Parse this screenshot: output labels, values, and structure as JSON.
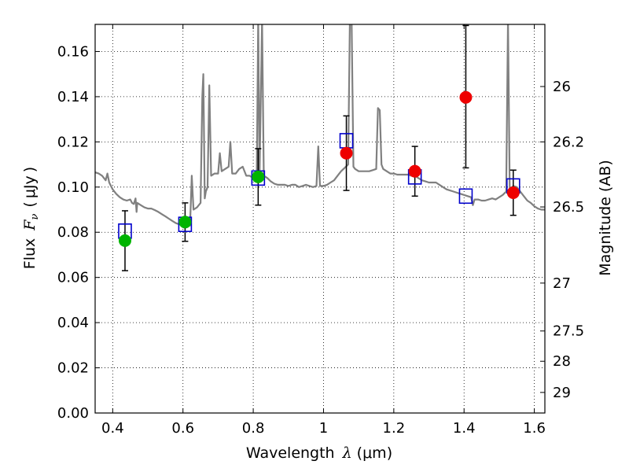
{
  "chart_data": {
    "type": "scatter",
    "xlabel": {
      "prefix": "Wavelength",
      "symbol": "λ",
      "unit_open": "(",
      "unit": "μm",
      "unit_close": ")"
    },
    "ylabel": {
      "prefix": "Flux",
      "symbol": "F",
      "subscript": "ν",
      "unit_open": "(",
      "unit": "μJy",
      "unit_close": ")"
    },
    "y2label": "Magnitude (AB)",
    "xlim": [
      0.35,
      1.63
    ],
    "ylim": [
      0.0,
      0.172
    ],
    "x_ticks": [
      0.4,
      0.6,
      0.8,
      1.0,
      1.2,
      1.4,
      1.6
    ],
    "x_tick_labels": [
      "0.4",
      "0.6",
      "0.8",
      "1",
      "1.2",
      "1.4",
      "1.6"
    ],
    "y_ticks": [
      0.0,
      0.02,
      0.04,
      0.06,
      0.08,
      0.1,
      0.12,
      0.14,
      0.16
    ],
    "y_tick_labels": [
      "0.00",
      "0.02",
      "0.04",
      "0.06",
      "0.08",
      "0.10",
      "0.12",
      "0.14",
      "0.16"
    ],
    "y2_ticks": [
      {
        "flux": 0.1445,
        "label": "26"
      },
      {
        "flux": 0.12,
        "label": "26.2"
      },
      {
        "flux": 0.0912,
        "label": "26.5"
      },
      {
        "flux": 0.0575,
        "label": "27"
      },
      {
        "flux": 0.0363,
        "label": "27.5"
      },
      {
        "flux": 0.0229,
        "label": "28"
      },
      {
        "flux": 0.0091,
        "label": "29"
      }
    ],
    "grid": true,
    "series": [
      {
        "marker": "square-open",
        "color": "#0000cc",
        "points": [
          {
            "x": 0.435,
            "y": 0.0805
          },
          {
            "x": 0.606,
            "y": 0.0835
          },
          {
            "x": 0.814,
            "y": 0.104
          },
          {
            "x": 1.065,
            "y": 0.1205
          },
          {
            "x": 1.26,
            "y": 0.1045
          },
          {
            "x": 1.405,
            "y": 0.096
          },
          {
            "x": 1.54,
            "y": 0.1005
          }
        ]
      },
      {
        "marker": "circle-filled",
        "color": "#00b400",
        "points": [
          {
            "x": 0.435,
            "y": 0.0763,
            "yerr_low": 0.063,
            "yerr_high": 0.0895
          },
          {
            "x": 0.606,
            "y": 0.0845,
            "yerr_low": 0.076,
            "yerr_high": 0.093
          },
          {
            "x": 0.814,
            "y": 0.1045,
            "yerr_low": 0.092,
            "yerr_high": 0.117
          }
        ]
      },
      {
        "marker": "circle-filled",
        "color": "#ee0000",
        "points": [
          {
            "x": 1.065,
            "y": 0.115,
            "yerr_low": 0.0985,
            "yerr_high": 0.1315
          },
          {
            "x": 1.26,
            "y": 0.107,
            "yerr_low": 0.096,
            "yerr_high": 0.118
          },
          {
            "x": 1.405,
            "y": 0.1397,
            "yerr_low": 0.1085,
            "yerr_high": 0.1715
          },
          {
            "x": 1.54,
            "y": 0.0975,
            "yerr_low": 0.0875,
            "yerr_high": 0.1075
          }
        ]
      },
      {
        "type": "line",
        "color": "#808080",
        "points": [
          [
            0.35,
            0.1065
          ],
          [
            0.36,
            0.106
          ],
          [
            0.37,
            0.105
          ],
          [
            0.38,
            0.103
          ],
          [
            0.385,
            0.106
          ],
          [
            0.39,
            0.102
          ],
          [
            0.4,
            0.099
          ],
          [
            0.41,
            0.097
          ],
          [
            0.42,
            0.0955
          ],
          [
            0.43,
            0.0945
          ],
          [
            0.44,
            0.094
          ],
          [
            0.45,
            0.0945
          ],
          [
            0.455,
            0.093
          ],
          [
            0.46,
            0.0925
          ],
          [
            0.465,
            0.095
          ],
          [
            0.468,
            0.089
          ],
          [
            0.47,
            0.093
          ],
          [
            0.48,
            0.092
          ],
          [
            0.49,
            0.091
          ],
          [
            0.5,
            0.0905
          ],
          [
            0.51,
            0.0905
          ],
          [
            0.52,
            0.0898
          ],
          [
            0.53,
            0.089
          ],
          [
            0.54,
            0.088
          ],
          [
            0.55,
            0.087
          ],
          [
            0.56,
            0.086
          ],
          [
            0.57,
            0.085
          ],
          [
            0.58,
            0.084
          ],
          [
            0.59,
            0.0835
          ],
          [
            0.6,
            0.083
          ],
          [
            0.61,
            0.0828
          ],
          [
            0.62,
            0.083
          ],
          [
            0.625,
            0.105
          ],
          [
            0.63,
            0.09
          ],
          [
            0.64,
            0.091
          ],
          [
            0.65,
            0.093
          ],
          [
            0.655,
            0.14
          ],
          [
            0.658,
            0.15
          ],
          [
            0.662,
            0.095
          ],
          [
            0.665,
            0.098
          ],
          [
            0.67,
            0.1
          ],
          [
            0.675,
            0.145
          ],
          [
            0.68,
            0.105
          ],
          [
            0.69,
            0.106
          ],
          [
            0.7,
            0.106
          ],
          [
            0.705,
            0.115
          ],
          [
            0.71,
            0.107
          ],
          [
            0.72,
            0.108
          ],
          [
            0.73,
            0.109
          ],
          [
            0.735,
            0.12
          ],
          [
            0.74,
            0.106
          ],
          [
            0.75,
            0.106
          ],
          [
            0.76,
            0.108
          ],
          [
            0.77,
            0.109
          ],
          [
            0.78,
            0.105
          ],
          [
            0.79,
            0.105
          ],
          [
            0.8,
            0.104
          ],
          [
            0.81,
            0.106
          ],
          [
            0.814,
            0.174
          ],
          [
            0.818,
            0.105
          ],
          [
            0.825,
            0.174
          ],
          [
            0.83,
            0.105
          ],
          [
            0.84,
            0.104
          ],
          [
            0.85,
            0.1025
          ],
          [
            0.86,
            0.1015
          ],
          [
            0.87,
            0.101
          ],
          [
            0.88,
            0.101
          ],
          [
            0.89,
            0.101
          ],
          [
            0.9,
            0.1005
          ],
          [
            0.91,
            0.101
          ],
          [
            0.92,
            0.101
          ],
          [
            0.93,
            0.1
          ],
          [
            0.94,
            0.1005
          ],
          [
            0.95,
            0.101
          ],
          [
            0.96,
            0.1005
          ],
          [
            0.97,
            0.1
          ],
          [
            0.98,
            0.1005
          ],
          [
            0.985,
            0.118
          ],
          [
            0.99,
            0.1005
          ],
          [
            1.0,
            0.1005
          ],
          [
            1.01,
            0.101
          ],
          [
            1.02,
            0.102
          ],
          [
            1.03,
            0.103
          ],
          [
            1.04,
            0.105
          ],
          [
            1.05,
            0.107
          ],
          [
            1.06,
            0.1085
          ],
          [
            1.07,
            0.11
          ],
          [
            1.075,
            0.174
          ],
          [
            1.08,
            0.174
          ],
          [
            1.085,
            0.109
          ],
          [
            1.09,
            0.108
          ],
          [
            1.1,
            0.107
          ],
          [
            1.11,
            0.107
          ],
          [
            1.12,
            0.107
          ],
          [
            1.13,
            0.107
          ],
          [
            1.14,
            0.1075
          ],
          [
            1.15,
            0.108
          ],
          [
            1.155,
            0.135
          ],
          [
            1.16,
            0.134
          ],
          [
            1.165,
            0.11
          ],
          [
            1.17,
            0.108
          ],
          [
            1.18,
            0.107
          ],
          [
            1.19,
            0.106
          ],
          [
            1.2,
            0.106
          ],
          [
            1.21,
            0.1055
          ],
          [
            1.22,
            0.1055
          ],
          [
            1.23,
            0.1055
          ],
          [
            1.24,
            0.1055
          ],
          [
            1.25,
            0.105
          ],
          [
            1.26,
            0.105
          ],
          [
            1.27,
            0.104
          ],
          [
            1.28,
            0.103
          ],
          [
            1.29,
            0.1025
          ],
          [
            1.3,
            0.102
          ],
          [
            1.31,
            0.102
          ],
          [
            1.32,
            0.102
          ],
          [
            1.33,
            0.101
          ],
          [
            1.34,
            0.1
          ],
          [
            1.35,
            0.099
          ],
          [
            1.36,
            0.0985
          ],
          [
            1.37,
            0.098
          ],
          [
            1.38,
            0.0975
          ],
          [
            1.39,
            0.097
          ],
          [
            1.4,
            0.0965
          ],
          [
            1.41,
            0.096
          ],
          [
            1.42,
            0.0955
          ],
          [
            1.425,
            0.092
          ],
          [
            1.43,
            0.0945
          ],
          [
            1.44,
            0.0945
          ],
          [
            1.45,
            0.094
          ],
          [
            1.46,
            0.094
          ],
          [
            1.47,
            0.0945
          ],
          [
            1.48,
            0.095
          ],
          [
            1.49,
            0.0945
          ],
          [
            1.5,
            0.0955
          ],
          [
            1.51,
            0.0965
          ],
          [
            1.52,
            0.098
          ],
          [
            1.525,
            0.174
          ],
          [
            1.53,
            0.099
          ],
          [
            1.54,
            0.1005
          ],
          [
            1.55,
            0.1
          ],
          [
            1.56,
            0.098
          ],
          [
            1.57,
            0.096
          ],
          [
            1.58,
            0.094
          ],
          [
            1.59,
            0.093
          ],
          [
            1.6,
            0.0915
          ],
          [
            1.61,
            0.0905
          ],
          [
            1.62,
            0.09
          ],
          [
            1.63,
            0.09
          ]
        ]
      }
    ]
  }
}
